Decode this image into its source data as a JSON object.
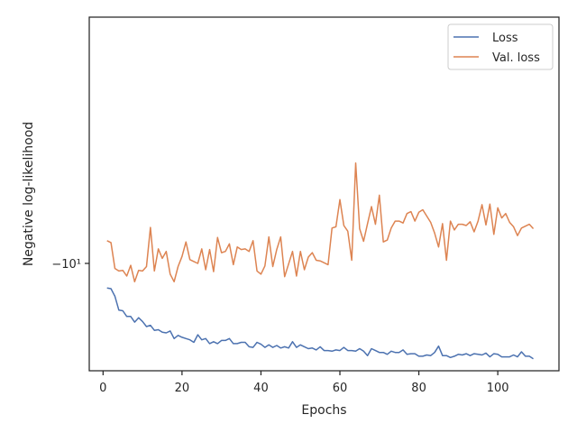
{
  "chart_data": {
    "type": "line",
    "xlabel": "Epochs",
    "ylabel": "Negative log-likelihood",
    "xlim": [
      -3.5,
      115.5
    ],
    "ylim": [
      -11.7,
      -6.1
    ],
    "y_scale": "symlog (log-scaled negative axis)",
    "x_ticks": [
      0,
      20,
      40,
      60,
      80,
      100
    ],
    "x_tick_labels": [
      "0",
      "20",
      "40",
      "60",
      "80",
      "100"
    ],
    "y_ticks": [
      -10
    ],
    "y_tick_labels": [
      "−10¹"
    ],
    "grid": false,
    "legend_position": "top-right",
    "colors": {
      "loss": "#4c72b0",
      "val_loss": "#dd8452",
      "axes": "#262626"
    },
    "series": [
      {
        "name": "Loss",
        "x": [
          1,
          2,
          3,
          4,
          5,
          6,
          7,
          8,
          9,
          10,
          11,
          12,
          13,
          14,
          15,
          16,
          17,
          18,
          19,
          20,
          21,
          22,
          23,
          24,
          25,
          26,
          27,
          28,
          29,
          30,
          31,
          32,
          33,
          34,
          35,
          36,
          37,
          38,
          39,
          40,
          41,
          42,
          43,
          44,
          45,
          46,
          47,
          48,
          49,
          50,
          51,
          52,
          53,
          54,
          55,
          56,
          57,
          58,
          59,
          60,
          61,
          62,
          63,
          64,
          65,
          66,
          67,
          68,
          69,
          70,
          71,
          72,
          73,
          74,
          75,
          76,
          77,
          78,
          79,
          80,
          81,
          82,
          83,
          84,
          85,
          86,
          87,
          88,
          89,
          90,
          91,
          92,
          93,
          94,
          95,
          96,
          97,
          98,
          99,
          100,
          101,
          102,
          103,
          104,
          105,
          106,
          107,
          108,
          109
        ],
        "values": [
          -10.39,
          -10.4,
          -10.52,
          -10.74,
          -10.75,
          -10.84,
          -10.84,
          -10.93,
          -10.86,
          -10.92,
          -11.0,
          -10.98,
          -11.06,
          -11.05,
          -11.09,
          -11.1,
          -11.07,
          -11.19,
          -11.14,
          -11.17,
          -11.19,
          -11.21,
          -11.25,
          -11.13,
          -11.21,
          -11.19,
          -11.27,
          -11.24,
          -11.27,
          -11.22,
          -11.22,
          -11.19,
          -11.27,
          -11.27,
          -11.25,
          -11.25,
          -11.32,
          -11.33,
          -11.25,
          -11.28,
          -11.33,
          -11.29,
          -11.33,
          -11.3,
          -11.34,
          -11.32,
          -11.34,
          -11.24,
          -11.33,
          -11.29,
          -11.32,
          -11.35,
          -11.34,
          -11.37,
          -11.32,
          -11.38,
          -11.38,
          -11.39,
          -11.37,
          -11.38,
          -11.33,
          -11.38,
          -11.38,
          -11.39,
          -11.35,
          -11.39,
          -11.46,
          -11.35,
          -11.38,
          -11.41,
          -11.41,
          -11.44,
          -11.39,
          -11.41,
          -11.41,
          -11.37,
          -11.44,
          -11.43,
          -11.43,
          -11.47,
          -11.47,
          -11.45,
          -11.46,
          -11.41,
          -11.31,
          -11.46,
          -11.46,
          -11.49,
          -11.47,
          -11.44,
          -11.45,
          -11.43,
          -11.46,
          -11.43,
          -11.44,
          -11.45,
          -11.42,
          -11.48,
          -11.43,
          -11.44,
          -11.48,
          -11.48,
          -11.48,
          -11.45,
          -11.48,
          -11.4,
          -11.47,
          -11.47,
          -11.51
        ]
      },
      {
        "name": "Val. loss",
        "x": [
          1,
          2,
          3,
          4,
          5,
          6,
          7,
          8,
          9,
          10,
          11,
          12,
          13,
          14,
          15,
          16,
          17,
          18,
          19,
          20,
          21,
          22,
          23,
          24,
          25,
          26,
          27,
          28,
          29,
          30,
          31,
          32,
          33,
          34,
          35,
          36,
          37,
          38,
          39,
          40,
          41,
          42,
          43,
          44,
          45,
          46,
          47,
          48,
          49,
          50,
          51,
          52,
          53,
          54,
          55,
          56,
          57,
          58,
          59,
          60,
          61,
          62,
          63,
          64,
          65,
          66,
          67,
          68,
          69,
          70,
          71,
          72,
          73,
          74,
          75,
          76,
          77,
          78,
          79,
          80,
          81,
          82,
          83,
          84,
          85,
          86,
          87,
          88,
          89,
          90,
          91,
          92,
          93,
          94,
          95,
          96,
          97,
          98,
          99,
          100,
          101,
          102,
          103,
          104,
          105,
          106,
          107,
          108,
          109
        ],
        "values": [
          -9.64,
          -9.67,
          -10.08,
          -10.12,
          -10.11,
          -10.2,
          -10.03,
          -10.29,
          -10.11,
          -10.12,
          -10.05,
          -9.43,
          -10.12,
          -9.77,
          -9.92,
          -9.81,
          -10.17,
          -10.29,
          -10.05,
          -9.89,
          -9.66,
          -9.94,
          -9.97,
          -10.0,
          -9.77,
          -10.1,
          -9.78,
          -10.13,
          -9.59,
          -9.83,
          -9.81,
          -9.69,
          -10.02,
          -9.74,
          -9.78,
          -9.77,
          -9.81,
          -9.64,
          -10.12,
          -10.17,
          -10.04,
          -9.58,
          -10.05,
          -9.78,
          -9.58,
          -10.21,
          -10.01,
          -9.81,
          -10.2,
          -9.81,
          -10.1,
          -9.9,
          -9.83,
          -9.95,
          -9.96,
          -9.99,
          -10.02,
          -9.44,
          -9.42,
          -8.99,
          -9.4,
          -9.49,
          -9.95,
          -8.41,
          -9.45,
          -9.65,
          -9.37,
          -9.1,
          -9.38,
          -8.92,
          -9.66,
          -9.63,
          -9.44,
          -9.33,
          -9.33,
          -9.36,
          -9.21,
          -9.18,
          -9.33,
          -9.19,
          -9.15,
          -9.25,
          -9.35,
          -9.52,
          -9.74,
          -9.37,
          -9.95,
          -9.33,
          -9.47,
          -9.38,
          -9.38,
          -9.4,
          -9.34,
          -9.5,
          -9.33,
          -9.07,
          -9.39,
          -9.06,
          -9.54,
          -9.12,
          -9.28,
          -9.21,
          -9.35,
          -9.42,
          -9.56,
          -9.44,
          -9.41,
          -9.38,
          -9.45
        ]
      }
    ]
  }
}
